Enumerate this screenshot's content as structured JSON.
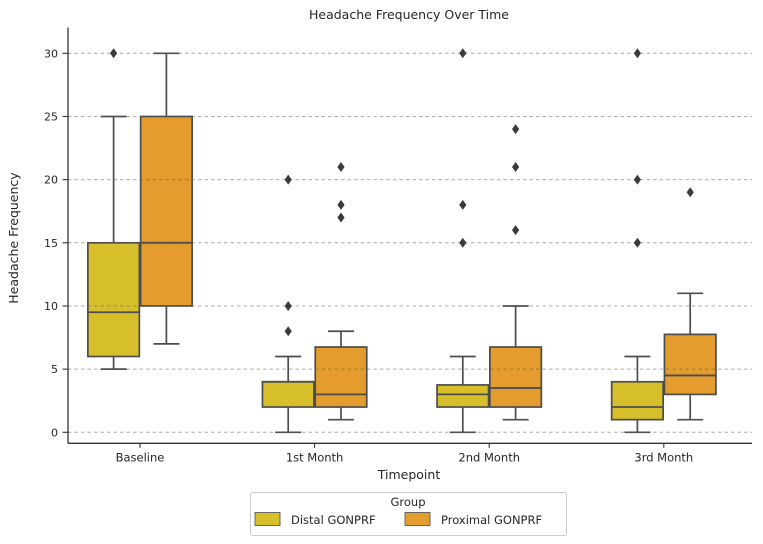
{
  "chart_data": {
    "type": "bar",
    "subtype": "grouped-boxplot",
    "title": "Headache Frequency Over Time",
    "xlabel": "Timepoint",
    "ylabel": "Headache Frequency",
    "categories": [
      "Baseline",
      "1st Month",
      "2nd Month",
      "3rd Month"
    ],
    "yticks": [
      0,
      5,
      10,
      15,
      20,
      25,
      30
    ],
    "ylim": [
      -0.9,
      32.1
    ],
    "grid": "horizontal dashed, drawn above boxes",
    "legend": {
      "title": "Group",
      "position": "below plot, centered",
      "entries": [
        {
          "label": "Distal GONPRF",
          "color": "#d7bf2c"
        },
        {
          "label": "Proximal GONPRF",
          "color": "#e39c2d"
        }
      ]
    },
    "colors": {
      "box_edge": "#4d4d4d",
      "outlier_marker": "#3b3b3b",
      "distal_fill": "#d7bf2c",
      "proximal_fill": "#e39c2d"
    },
    "outlier_marker_shape": "diamond",
    "series": [
      {
        "name": "Distal GONPRF",
        "color": "#d7bf2c",
        "boxes": [
          {
            "category": "Baseline",
            "whisker_low": 5,
            "q1": 6,
            "median": 9.5,
            "q3": 15,
            "whisker_high": 25,
            "outliers": [
              30
            ]
          },
          {
            "category": "1st Month",
            "whisker_low": 0,
            "q1": 2,
            "median": 4,
            "q3": 4,
            "whisker_high": 6,
            "outliers": [
              8,
              10,
              20
            ]
          },
          {
            "category": "2nd Month",
            "whisker_low": 0,
            "q1": 2,
            "median": 3,
            "q3": 3.75,
            "whisker_high": 6,
            "outliers": [
              15,
              18,
              30
            ]
          },
          {
            "category": "3rd Month",
            "whisker_low": 0,
            "q1": 1,
            "median": 2,
            "q3": 4,
            "whisker_high": 6,
            "outliers": [
              15,
              20,
              30
            ]
          }
        ]
      },
      {
        "name": "Proximal GONPRF",
        "color": "#e39c2d",
        "boxes": [
          {
            "category": "Baseline",
            "whisker_low": 7,
            "q1": 10,
            "median": 15,
            "q3": 25,
            "whisker_high": 30,
            "outliers": []
          },
          {
            "category": "1st Month",
            "whisker_low": 1,
            "q1": 2,
            "median": 3,
            "q3": 6.75,
            "whisker_high": 8,
            "outliers": [
              17,
              18,
              21
            ]
          },
          {
            "category": "2nd Month",
            "whisker_low": 1,
            "q1": 2,
            "median": 3.5,
            "q3": 6.75,
            "whisker_high": 10,
            "outliers": [
              16,
              21,
              24
            ]
          },
          {
            "category": "3rd Month",
            "whisker_low": 1,
            "q1": 3,
            "median": 4.5,
            "q3": 7.75,
            "whisker_high": 11,
            "outliers": [
              19
            ]
          }
        ]
      }
    ]
  }
}
